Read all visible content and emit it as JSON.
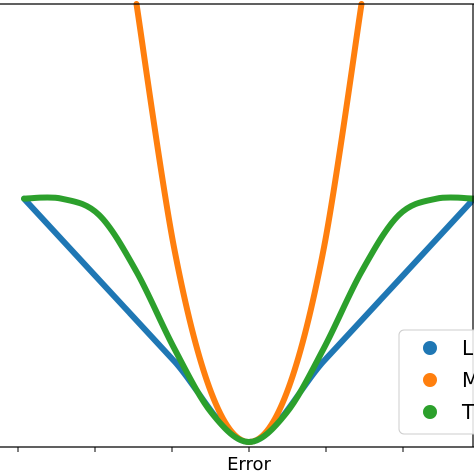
{
  "chart_data": {
    "type": "line",
    "title": "",
    "xlabel": "Error",
    "ylabel": "",
    "xlim": [
      -3,
      3
    ],
    "ylim": [
      0,
      2.7
    ],
    "grid": false,
    "legend": {
      "placement": "bottom-right",
      "visible_labels": [
        "L",
        "M",
        "T"
      ]
    },
    "series": [
      {
        "name": "L",
        "color": "#1f77b4",
        "x": [
          -3,
          -2,
          -1,
          0,
          1,
          2,
          3
        ],
        "y": [
          1.5,
          1.0,
          0.5,
          0.0,
          0.5,
          1.0,
          1.5
        ]
      },
      {
        "name": "M",
        "color": "#ff7f0e",
        "x": [
          -1.5,
          -1.0,
          -0.5,
          0.0,
          0.5,
          1.0,
          1.5
        ],
        "y": [
          2.7,
          1.2,
          0.3,
          0.0,
          0.3,
          1.2,
          2.7
        ]
      },
      {
        "name": "T",
        "color": "#2ca02c",
        "x": [
          -3.0,
          -2.5,
          -2.0,
          -1.5,
          -1.0,
          -0.5,
          0.0,
          0.5,
          1.0,
          1.5,
          2.0,
          2.5,
          3.0
        ],
        "y": [
          1.5,
          1.5,
          1.4,
          1.05,
          0.58,
          0.18,
          0.0,
          0.18,
          0.58,
          1.05,
          1.4,
          1.5,
          1.5
        ]
      }
    ]
  }
}
